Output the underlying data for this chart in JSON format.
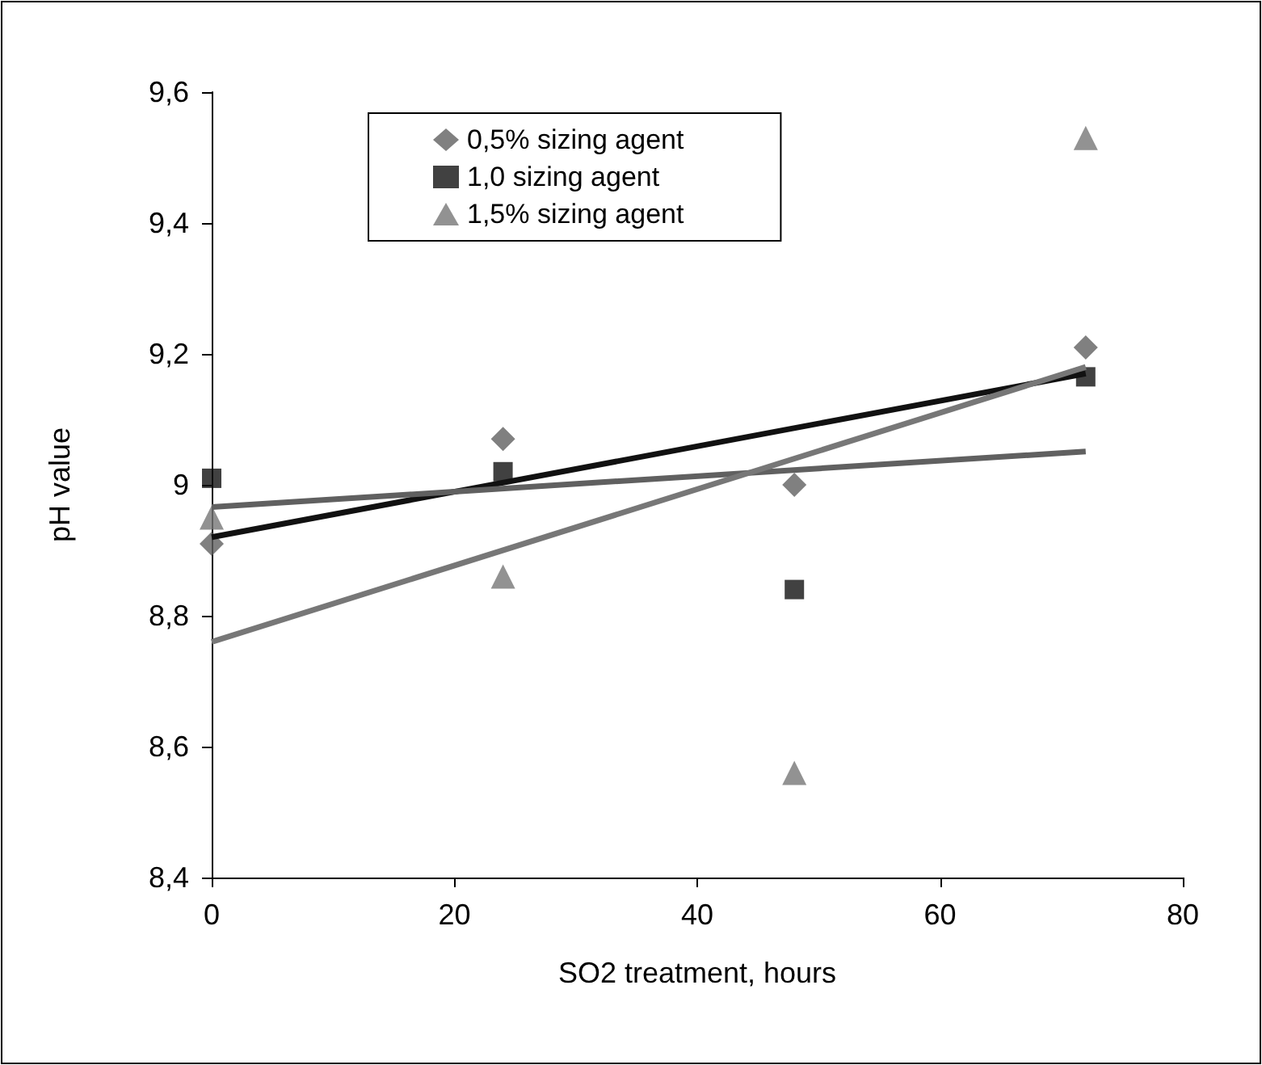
{
  "chart_data": {
    "type": "scatter",
    "xlabel": "SO2 treatment, hours",
    "ylabel": "pH value",
    "xlim": [
      0,
      80
    ],
    "xticks": [
      0,
      20,
      40,
      60,
      80
    ],
    "ylim": [
      8.4,
      9.6
    ],
    "yticks": [
      {
        "value": 8.4,
        "label": "8,4"
      },
      {
        "value": 8.6,
        "label": "8,6"
      },
      {
        "value": 8.8,
        "label": "8,8"
      },
      9,
      {
        "value": 9.2,
        "label": "9,2"
      },
      {
        "value": 9.4,
        "label": "9,4"
      },
      {
        "value": 9.6,
        "label": "9,6"
      }
    ],
    "grid": false,
    "legend": "top",
    "series": [
      {
        "name": "0,5% sizing agent",
        "color": "#606060",
        "marker": "diamond",
        "x": [
          0,
          24,
          48,
          72
        ],
        "values": [
          8.91,
          9.07,
          9.0,
          9.21
        ]
      },
      {
        "name": "1,0 sizing agent",
        "color": "#111111",
        "marker": "square",
        "x": [
          0,
          24,
          48,
          72
        ],
        "values": [
          9.01,
          9.02,
          8.84,
          9.165
        ]
      },
      {
        "name": "1,5% sizing agent",
        "color": "#777777",
        "marker": "triangle",
        "x": [
          0,
          24,
          48,
          72
        ],
        "values": [
          8.95,
          8.86,
          8.56,
          9.53
        ]
      },
      {
        "type": "line",
        "color": "#111111",
        "marker": "none",
        "x": [
          0,
          72
        ],
        "values": [
          8.92,
          9.17
        ]
      },
      {
        "type": "line",
        "color": "#606060",
        "marker": "none",
        "x": [
          0,
          72
        ],
        "values": [
          8.966,
          9.051
        ]
      },
      {
        "type": "line",
        "color": "#777777",
        "marker": "none",
        "x": [
          0,
          72
        ],
        "values": [
          8.76,
          9.18
        ]
      }
    ]
  }
}
